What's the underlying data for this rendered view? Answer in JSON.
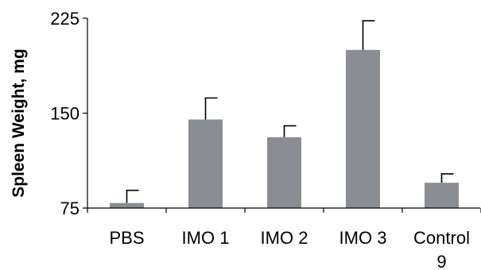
{
  "chart_data": {
    "type": "bar",
    "categories": [
      "PBS",
      "IMO 1",
      "IMO 2",
      "IMO 3",
      "Control 9"
    ],
    "category_lines": [
      [
        "PBS"
      ],
      [
        "IMO 1"
      ],
      [
        "IMO 2"
      ],
      [
        "IMO 3"
      ],
      [
        "Control",
        "9"
      ]
    ],
    "values": [
      79,
      145,
      131,
      200,
      95
    ],
    "error_upper": [
      89,
      162,
      140,
      223,
      102
    ],
    "title": "",
    "xlabel": "",
    "ylabel": "Spleen Weight, mg",
    "ylim": [
      75,
      225
    ],
    "yticks": [
      75,
      150,
      225
    ],
    "grid": false,
    "legend": "none",
    "bar_color": "#8a8e93"
  }
}
